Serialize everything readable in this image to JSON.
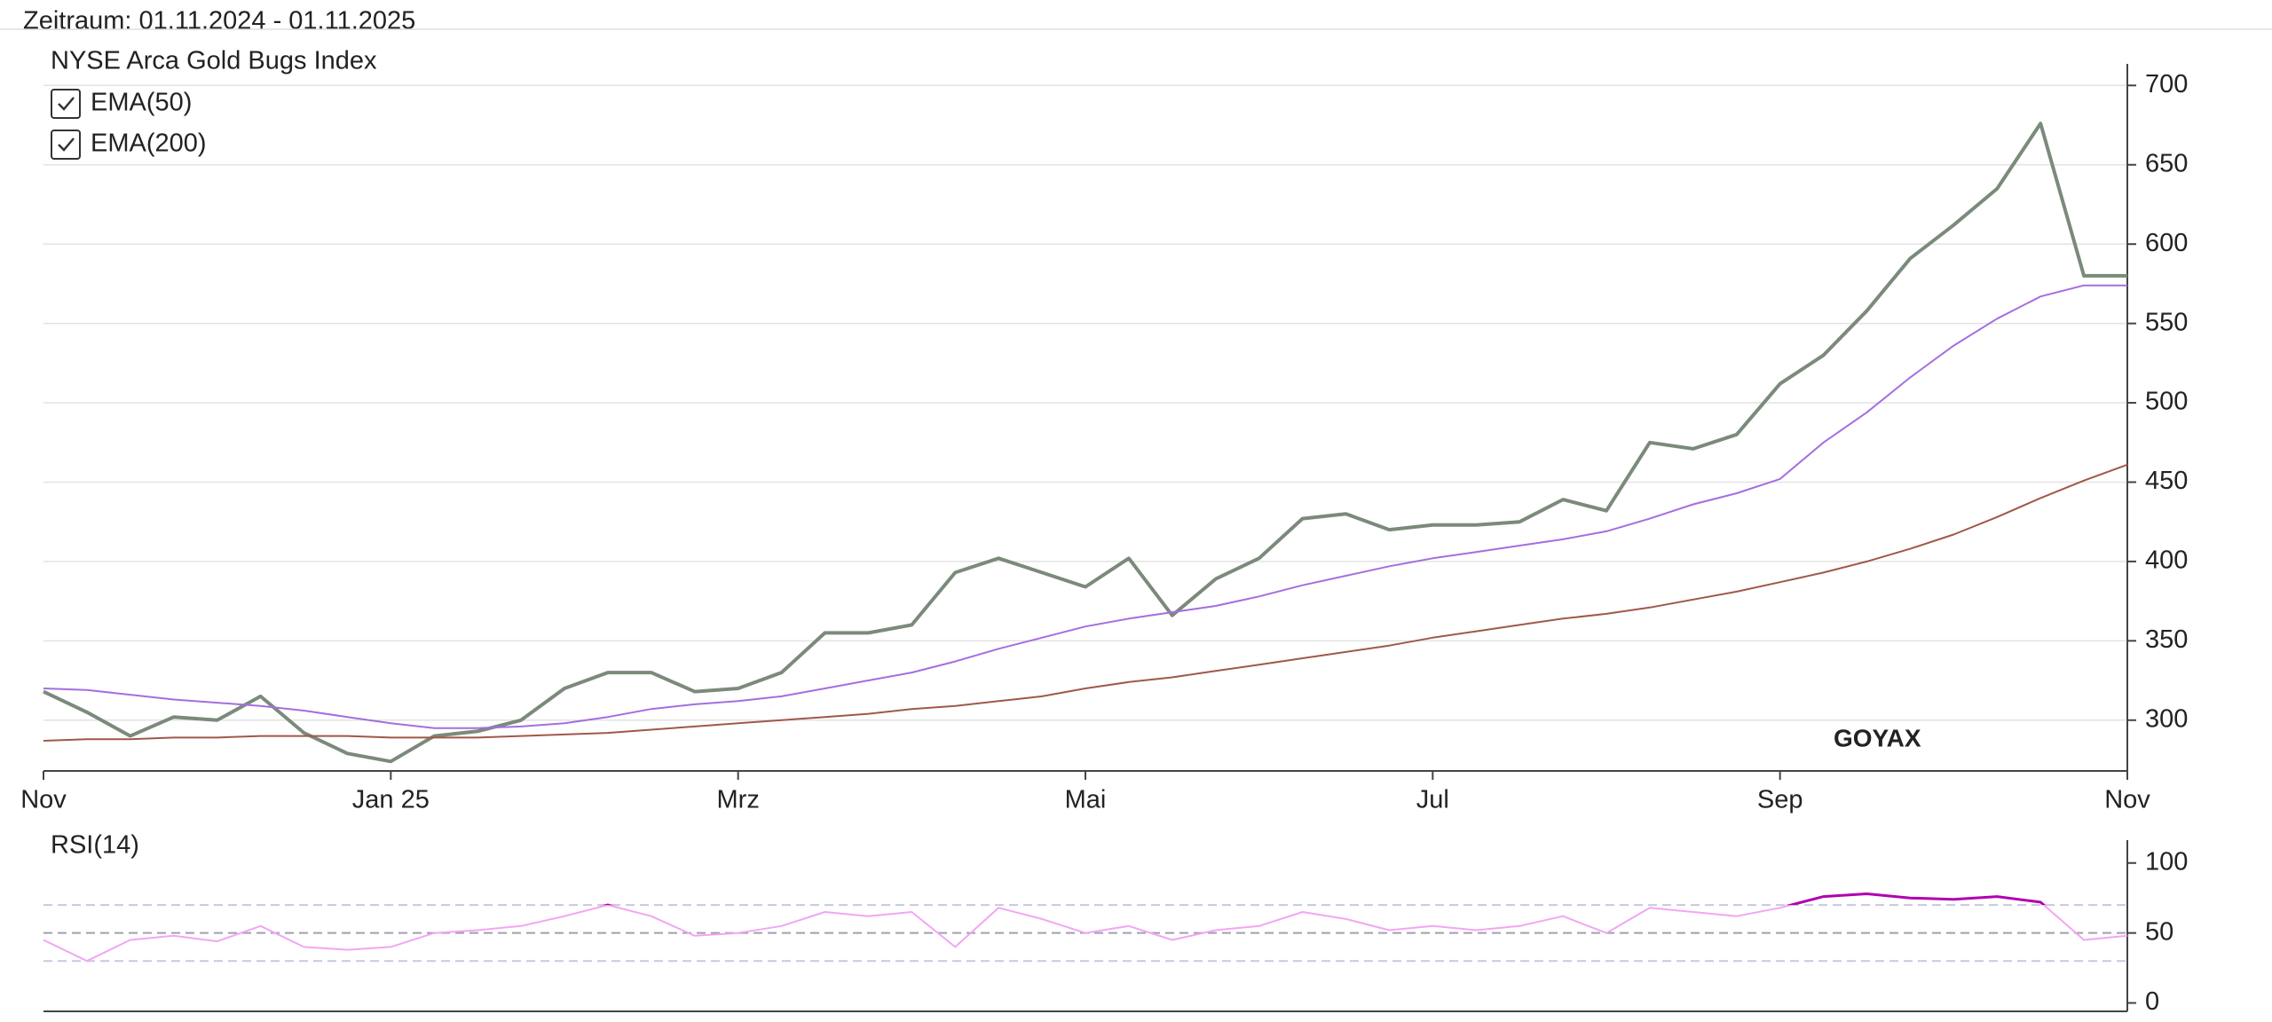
{
  "header": {
    "period": "Zeitraum: 01.11.2024 - 01.11.2025"
  },
  "chart_data": [
    {
      "type": "line",
      "watermark": "GOYAX",
      "categories": [
        "Nov",
        null,
        null,
        null,
        null,
        null,
        null,
        null,
        "Jan 25",
        null,
        null,
        null,
        null,
        null,
        null,
        null,
        "Mrz",
        null,
        null,
        null,
        null,
        null,
        null,
        null,
        "Mai",
        null,
        null,
        null,
        null,
        null,
        null,
        null,
        "Jul",
        null,
        null,
        null,
        null,
        null,
        null,
        null,
        "Sep",
        null,
        null,
        null,
        null,
        null,
        null,
        null,
        "Nov"
      ],
      "series": [
        {
          "name": "NYSE Arca Gold Bugs Index",
          "color": "#7b8a7b",
          "checkbox": false,
          "values": [
            318,
            305,
            290,
            302,
            300,
            315,
            292,
            279,
            274,
            290,
            293,
            300,
            320,
            330,
            330,
            318,
            320,
            330,
            355,
            355,
            360,
            393,
            402,
            393,
            384,
            402,
            366,
            389,
            402,
            427,
            430,
            420,
            423,
            423,
            425,
            439,
            432,
            475,
            471,
            480,
            512,
            530,
            558,
            591,
            612,
            635,
            676,
            580,
            580
          ]
        },
        {
          "name": "EMA(50)",
          "color": "#a46ee0",
          "checkbox": true,
          "values": [
            320,
            319,
            316,
            313,
            311,
            309,
            306,
            302,
            298,
            295,
            295,
            296,
            298,
            302,
            307,
            310,
            312,
            315,
            320,
            325,
            330,
            337,
            345,
            352,
            359,
            364,
            368,
            372,
            378,
            385,
            391,
            397,
            402,
            406,
            410,
            414,
            419,
            427,
            436,
            443,
            452,
            475,
            494,
            516,
            536,
            553,
            567,
            574,
            574
          ]
        },
        {
          "name": "EMA(200)",
          "color": "#a0584a",
          "checkbox": true,
          "values": [
            287,
            288,
            288,
            289,
            289,
            290,
            290,
            290,
            289,
            289,
            289,
            290,
            291,
            292,
            294,
            296,
            298,
            300,
            302,
            304,
            307,
            309,
            312,
            315,
            320,
            324,
            327,
            331,
            335,
            339,
            343,
            347,
            352,
            356,
            360,
            364,
            367,
            371,
            376,
            381,
            387,
            393,
            400,
            408,
            417,
            428,
            440,
            451,
            461
          ]
        }
      ],
      "ylim": [
        268,
        708
      ],
      "yticks": [
        300,
        350,
        400,
        450,
        500,
        550,
        600,
        650,
        700
      ],
      "grid": true
    },
    {
      "type": "line",
      "series": [
        {
          "name": "RSI(14)",
          "color": "#f2a6f2",
          "overbought_color": "#b000b0",
          "values": [
            45,
            30,
            45,
            48,
            44,
            55,
            40,
            38,
            40,
            50,
            52,
            55,
            62,
            70,
            62,
            48,
            50,
            55,
            65,
            62,
            65,
            40,
            68,
            60,
            50,
            55,
            45,
            52,
            55,
            65,
            60,
            52,
            55,
            52,
            55,
            62,
            50,
            68,
            65,
            62,
            68,
            76,
            78,
            75,
            74,
            76,
            72,
            45,
            48
          ]
        }
      ],
      "ylim": [
        -6,
        110
      ],
      "yticks": [
        0,
        50,
        100
      ],
      "ref_lines": [
        30,
        50,
        70
      ]
    }
  ]
}
